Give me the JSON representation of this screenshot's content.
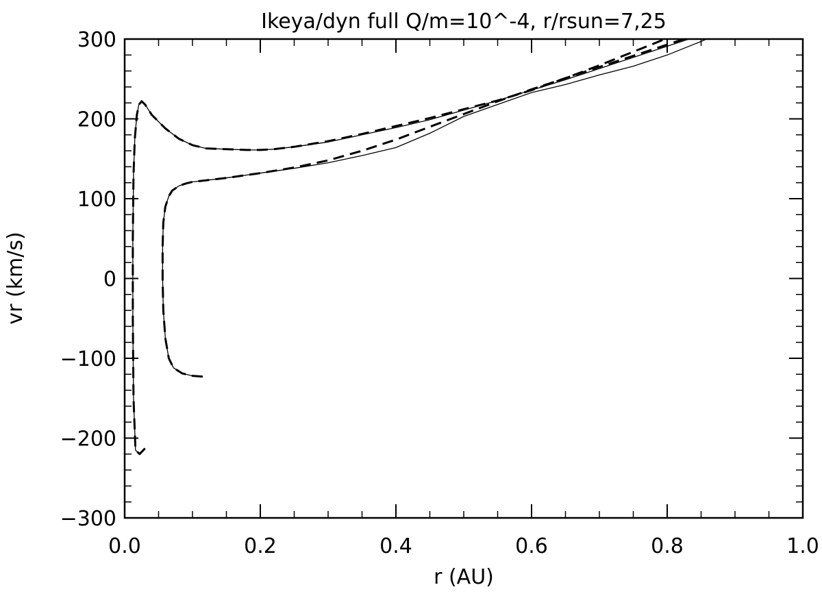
{
  "chart_data": {
    "type": "line",
    "title": "Ikeya/dyn full Q/m=10^-4, r/rsun=7,25",
    "xlabel": "r (AU)",
    "ylabel": "vr (km/s)",
    "xlim": [
      0.0,
      1.0
    ],
    "ylim": [
      -300,
      300
    ],
    "xticks": [
      "0.0",
      "0.2",
      "0.4",
      "0.6",
      "0.8",
      "1.0"
    ],
    "yticks": [
      "300",
      "200",
      "100",
      "0",
      "−100",
      "−200",
      "−300"
    ],
    "grid": false,
    "series": [
      {
        "style": "solid",
        "x": [
          0.03,
          0.022,
          0.016,
          0.013,
          0.012,
          0.012,
          0.013,
          0.015,
          0.018,
          0.021,
          0.025,
          0.03,
          0.04,
          0.06,
          0.08,
          0.1,
          0.12,
          0.15,
          0.18,
          0.2,
          0.22,
          0.25,
          0.3,
          0.35,
          0.4,
          0.45,
          0.5,
          0.55,
          0.6,
          0.65,
          0.7,
          0.75,
          0.8,
          0.85,
          0.88
        ],
        "y": [
          -213,
          -220,
          -215,
          -150,
          -50,
          50,
          130,
          175,
          205,
          218,
          222,
          218,
          205,
          188,
          175,
          167,
          163,
          162,
          161,
          161,
          162,
          165,
          171,
          180,
          189,
          199,
          211,
          223,
          236,
          249,
          263,
          277,
          291,
          305,
          312
        ]
      },
      {
        "style": "solid",
        "x": [
          0.115,
          0.1,
          0.085,
          0.072,
          0.065,
          0.06,
          0.057,
          0.056,
          0.056,
          0.057,
          0.06,
          0.065,
          0.07,
          0.08,
          0.09,
          0.1,
          0.12,
          0.15,
          0.2,
          0.25,
          0.3,
          0.35,
          0.4,
          0.45,
          0.5,
          0.55,
          0.6,
          0.65,
          0.7,
          0.75,
          0.8,
          0.85,
          0.88
        ],
        "y": [
          -123,
          -122,
          -119,
          -112,
          -100,
          -75,
          -40,
          0,
          40,
          70,
          90,
          103,
          110,
          116,
          119,
          121,
          123,
          126,
          132,
          138,
          145,
          154,
          164,
          182,
          203,
          218,
          233,
          243,
          255,
          266,
          280,
          297,
          308
        ]
      },
      {
        "style": "dashed",
        "x": [
          0.03,
          0.022,
          0.016,
          0.013,
          0.012,
          0.012,
          0.013,
          0.015,
          0.018,
          0.021,
          0.025,
          0.03,
          0.04,
          0.06,
          0.08,
          0.1,
          0.12,
          0.15,
          0.18,
          0.2,
          0.22,
          0.25,
          0.3,
          0.35,
          0.4,
          0.45,
          0.5,
          0.55,
          0.6,
          0.65,
          0.7,
          0.75,
          0.8,
          0.82
        ],
        "y": [
          -213,
          -220,
          -215,
          -150,
          -50,
          50,
          130,
          175,
          205,
          218,
          222,
          218,
          205,
          188,
          175,
          167,
          163,
          162,
          161,
          161,
          162,
          165,
          172,
          181,
          191,
          201,
          212,
          223,
          236,
          251,
          267,
          284,
          301,
          309
        ]
      },
      {
        "style": "dashed",
        "x": [
          0.115,
          0.1,
          0.085,
          0.072,
          0.065,
          0.06,
          0.057,
          0.056,
          0.056,
          0.057,
          0.06,
          0.065,
          0.07,
          0.08,
          0.09,
          0.1,
          0.12,
          0.15,
          0.2,
          0.25,
          0.3,
          0.35,
          0.4,
          0.45,
          0.5,
          0.55,
          0.6,
          0.65,
          0.7,
          0.75,
          0.8,
          0.85,
          0.87
        ],
        "y": [
          -123,
          -122,
          -119,
          -112,
          -100,
          -75,
          -40,
          0,
          40,
          70,
          90,
          103,
          110,
          116,
          119,
          121,
          123,
          126,
          132,
          139,
          148,
          160,
          174,
          190,
          206,
          222,
          237,
          251,
          265,
          279,
          293,
          307,
          312
        ]
      }
    ]
  }
}
